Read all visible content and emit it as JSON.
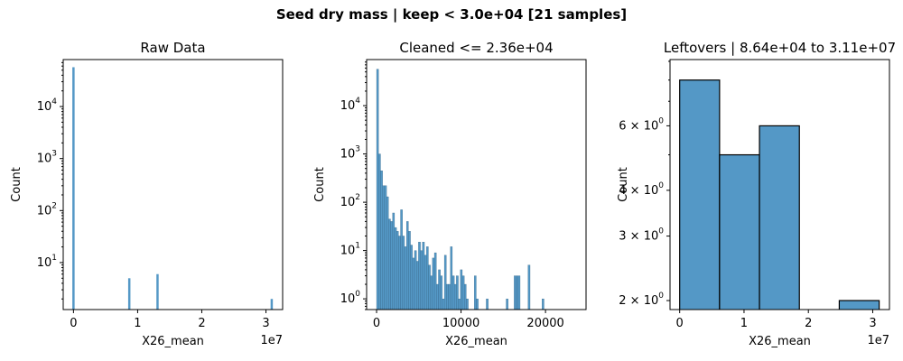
{
  "figure": {
    "suptitle": "Seed dry mass | keep < 3.0e+04 [21 samples]",
    "bar_color": "#5498c6"
  },
  "chart_data": [
    {
      "type": "bar",
      "title": "Raw Data",
      "xlabel": "X26_mean",
      "ylabel": "Count",
      "xscale_label": "1e7",
      "xscale_factor": 10000000,
      "xlim": [
        -1600000,
        32600000
      ],
      "xticks": [
        0,
        10000000,
        20000000,
        30000000
      ],
      "xtick_labels": [
        "0",
        "1",
        "2",
        "3"
      ],
      "yscale": "log",
      "ylim": [
        1.25,
        80000
      ],
      "yticks": [
        10,
        100,
        1000,
        10000
      ],
      "ytick_labels": [
        [
          "10",
          "1"
        ],
        [
          "10",
          "2"
        ],
        [
          "10",
          "3"
        ],
        [
          "10",
          "4"
        ]
      ],
      "bars": [
        {
          "x": 0,
          "count": 57000
        },
        {
          "x": 8700000,
          "count": 5
        },
        {
          "x": 13100000,
          "count": 6
        },
        {
          "x": 30900000,
          "count": 2
        }
      ],
      "bar_width_units": 150000
    },
    {
      "type": "bar",
      "title": "Cleaned <= 2.36e+04",
      "xlabel": "X26_mean",
      "ylabel": "Count",
      "xscale_label": "",
      "xlim": [
        -1180,
        24800
      ],
      "xticks": [
        0,
        10000,
        20000
      ],
      "xtick_labels": [
        "0",
        "10000",
        "20000"
      ],
      "yscale": "log",
      "ylim": [
        0.6,
        90000
      ],
      "yticks": [
        1,
        10,
        100,
        1000,
        10000
      ],
      "ytick_labels": [
        [
          "10",
          "0"
        ],
        [
          "10",
          "1"
        ],
        [
          "10",
          "2"
        ],
        [
          "10",
          "3"
        ],
        [
          "10",
          "4"
        ]
      ],
      "bin_width": 236,
      "values": [
        57000,
        1000,
        450,
        220,
        220,
        130,
        45,
        40,
        60,
        30,
        25,
        20,
        70,
        20,
        12,
        40,
        25,
        13,
        7,
        10,
        6,
        15,
        10,
        15,
        8,
        12,
        5,
        3,
        7,
        9,
        2,
        4,
        3,
        1,
        8,
        2,
        2,
        12,
        3,
        2,
        3,
        1,
        4,
        3,
        2,
        1,
        0,
        0,
        0,
        3,
        1,
        0,
        0,
        0,
        0,
        1,
        0,
        0,
        0,
        0,
        0,
        0,
        0,
        0,
        0,
        1,
        0,
        0,
        0,
        3,
        3,
        3,
        0,
        0,
        0,
        0,
        5,
        0,
        0,
        0,
        0,
        0,
        0,
        1,
        0,
        0,
        0,
        0,
        0,
        0,
        0,
        0,
        0,
        0,
        0,
        0,
        0,
        0,
        0,
        0,
        0,
        0,
        0,
        0,
        0,
        0,
        0,
        0,
        0,
        0,
        0,
        0,
        0,
        0
      ]
    },
    {
      "type": "bar",
      "title": "Leftovers | 8.64e+04 to 3.11e+07",
      "xlabel": "X26_mean",
      "ylabel": "Count",
      "xscale_label": "1e7",
      "xscale_factor": 10000000,
      "xlim": [
        -1500000,
        32600000
      ],
      "xticks": [
        0,
        10000000,
        20000000,
        30000000
      ],
      "xtick_labels": [
        "0",
        "1",
        "2",
        "3"
      ],
      "yscale": "log",
      "ylim": [
        1.89,
        9.1
      ],
      "yticks": [
        2,
        3,
        4,
        6
      ],
      "ytick_labels": [
        [
          "2 × 10",
          "0"
        ],
        [
          "3 × 10",
          "0"
        ],
        [
          "4 × 10",
          "0"
        ],
        [
          "6 × 10",
          "0"
        ]
      ],
      "bins": [
        {
          "x0": 0,
          "x1": 6200000,
          "count": 8
        },
        {
          "x0": 6200000,
          "x1": 12400000,
          "count": 5
        },
        {
          "x0": 12400000,
          "x1": 18600000,
          "count": 6
        },
        {
          "x0": 18600000,
          "x1": 24800000,
          "count": 0
        },
        {
          "x0": 24800000,
          "x1": 31000000,
          "count": 2
        }
      ],
      "outlined": true
    }
  ]
}
